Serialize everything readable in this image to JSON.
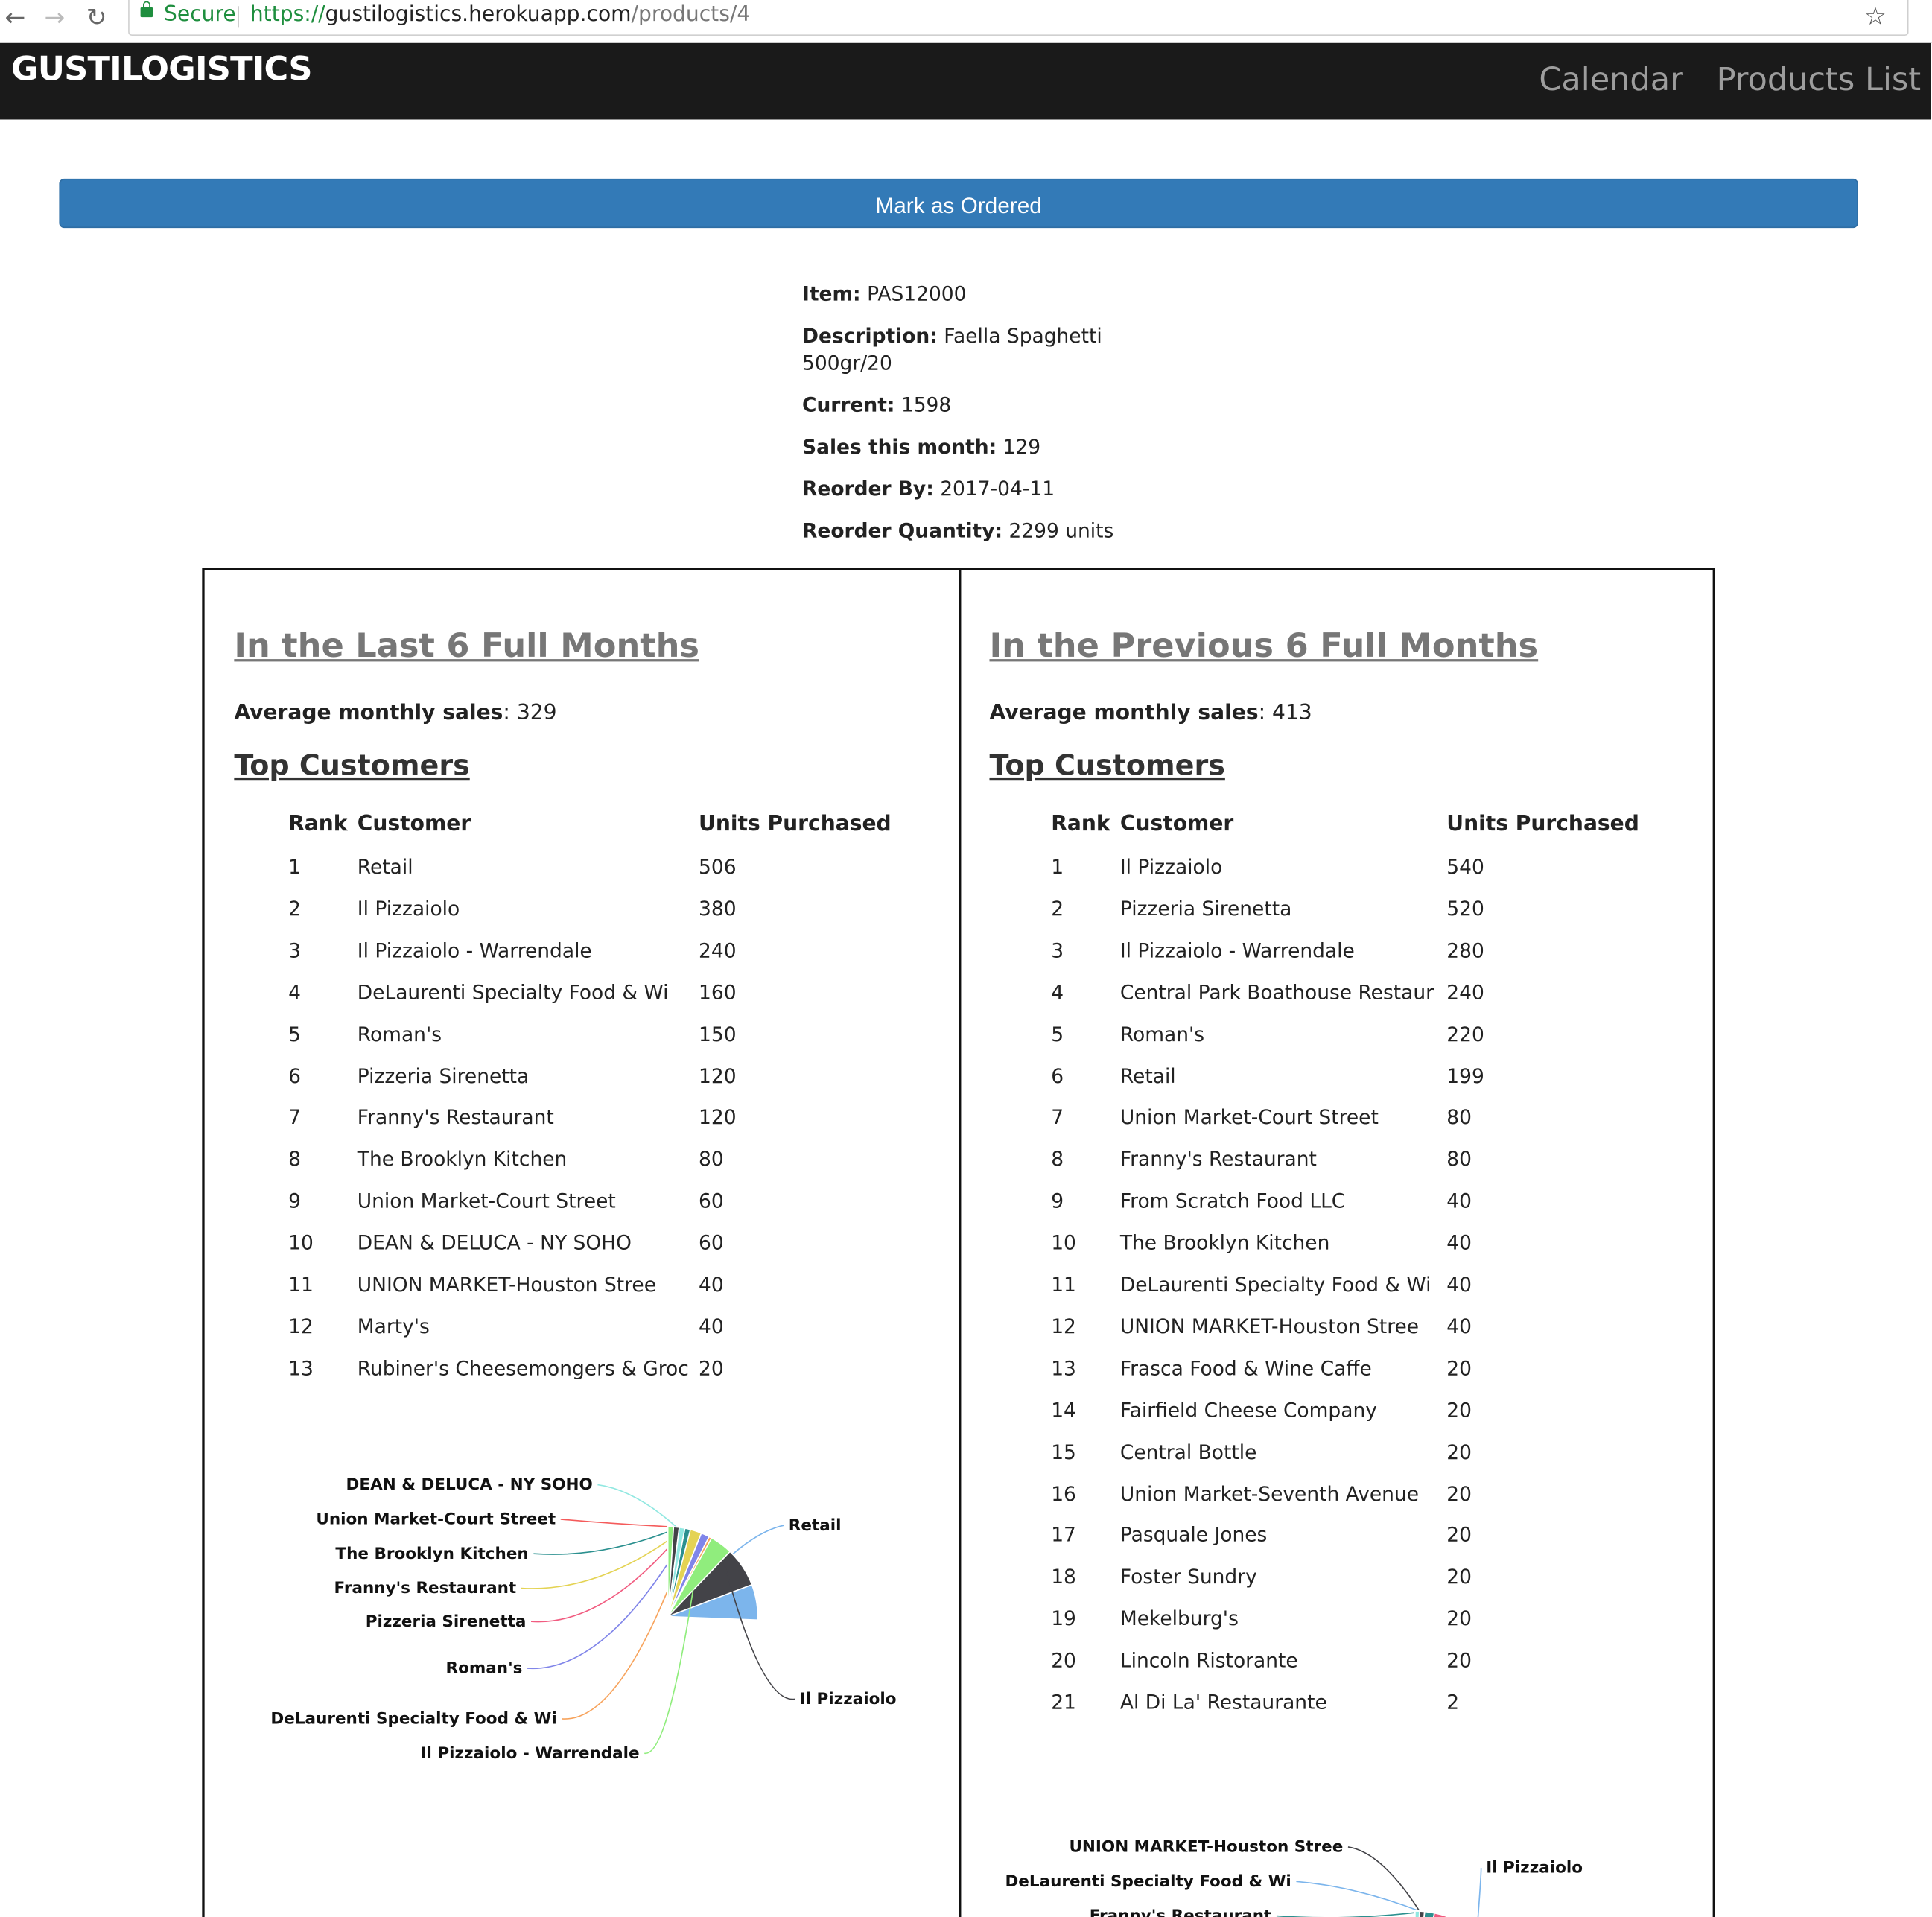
{
  "browser": {
    "secure_label": "Secure",
    "url_scheme": "https://",
    "url_host": "gustilogistics.herokuapp.com",
    "url_path": "/products/4"
  },
  "navbar": {
    "brand": "GUSTILOGISTICS",
    "links": [
      "Calendar",
      "Products List"
    ]
  },
  "order_button": "Mark as Ordered",
  "product": {
    "item_label": "Item:",
    "item": "PAS12000",
    "description_label": "Description:",
    "description": "Faella Spaghetti 500gr/20",
    "current_label": "Current:",
    "current": "1598",
    "sales_label": "Sales this month:",
    "sales": "129",
    "reorder_by_label": "Reorder By:",
    "reorder_by": "2017-04-11",
    "reorder_qty_label": "Reorder Quantity:",
    "reorder_qty": "2299 units"
  },
  "table_headers": {
    "rank": "Rank",
    "customer": "Customer",
    "units": "Units Purchased"
  },
  "panels": [
    {
      "title": "In the Last 6 Full Months",
      "avg_label": "Average monthly sales",
      "avg_value": ": 329",
      "top_title": "Top Customers",
      "rows": [
        [
          "1",
          "Retail",
          "506"
        ],
        [
          "2",
          "Il Pizzaiolo",
          "380"
        ],
        [
          "3",
          "Il Pizzaiolo - Warrendale",
          "240"
        ],
        [
          "4",
          "DeLaurenti Specialty Food & Wi",
          "160"
        ],
        [
          "5",
          "Roman's",
          "150"
        ],
        [
          "6",
          "Pizzeria Sirenetta",
          "120"
        ],
        [
          "7",
          "Franny's Restaurant",
          "120"
        ],
        [
          "8",
          "The Brooklyn Kitchen",
          "80"
        ],
        [
          "9",
          "Union Market-Court Street",
          "60"
        ],
        [
          "10",
          "DEAN & DELUCA - NY SOHO",
          "60"
        ],
        [
          "11",
          "UNION MARKET-Houston Stree",
          "40"
        ],
        [
          "12",
          "Marty's",
          "40"
        ],
        [
          "13",
          "Rubiner's Cheesemongers & Groc",
          "20"
        ]
      ]
    },
    {
      "title": "In the Previous 6 Full Months",
      "avg_label": "Average monthly sales",
      "avg_value": ": 413",
      "top_title": "Top Customers",
      "rows": [
        [
          "1",
          "Il Pizzaiolo",
          "540"
        ],
        [
          "2",
          "Pizzeria Sirenetta",
          "520"
        ],
        [
          "3",
          "Il Pizzaiolo - Warrendale",
          "280"
        ],
        [
          "4",
          "Central Park Boathouse Restaur",
          "240"
        ],
        [
          "5",
          "Roman's",
          "220"
        ],
        [
          "6",
          "Retail",
          "199"
        ],
        [
          "7",
          "Union Market-Court Street",
          "80"
        ],
        [
          "8",
          "Franny's Restaurant",
          "80"
        ],
        [
          "9",
          "From Scratch Food LLC",
          "40"
        ],
        [
          "10",
          "The Brooklyn Kitchen",
          "40"
        ],
        [
          "11",
          "DeLaurenti Specialty Food & Wi",
          "40"
        ],
        [
          "12",
          "UNION MARKET-Houston Stree",
          "40"
        ],
        [
          "13",
          "Frasca Food & Wine Caffe",
          "20"
        ],
        [
          "14",
          "Fairfield Cheese Company",
          "20"
        ],
        [
          "15",
          "Central Bottle",
          "20"
        ],
        [
          "16",
          "Union Market-Seventh Avenue",
          "20"
        ],
        [
          "17",
          "Pasquale Jones",
          "20"
        ],
        [
          "18",
          "Foster Sundry",
          "20"
        ],
        [
          "19",
          "Mekelburg's",
          "20"
        ],
        [
          "20",
          "Lincoln Ristorante",
          "20"
        ],
        [
          "21",
          "Al Di La' Restaurante",
          "2"
        ]
      ]
    }
  ],
  "chart_data": [
    {
      "type": "pie",
      "title": "",
      "categories": [
        "Retail",
        "Il Pizzaiolo",
        "Il Pizzaiolo - Warrendale",
        "DeLaurenti Specialty Food & Wi",
        "Roman's",
        "Pizzeria Sirenetta",
        "Franny's Restaurant",
        "The Brooklyn Kitchen",
        "Union Market-Court Street",
        "DEAN & DELUCA - NY SOHO",
        "UNION MARKET-Houston Stree",
        "Marty's",
        "Rubiner's Cheesemongers & Groc"
      ],
      "values": [
        506,
        380,
        240,
        160,
        150,
        120,
        120,
        80,
        60,
        60,
        40,
        40,
        20
      ],
      "visible_labels": [
        "Retail",
        "Il Pizzaiolo",
        "Il Pizzaiolo - Warrendale",
        "DeLaurenti Specialty Food & Wi",
        "Roman's",
        "Pizzeria Sirenetta",
        "Franny's Restaurant",
        "The Brooklyn Kitchen",
        "Union Market-Court Street",
        "DEAN & DELUCA - NY SOHO"
      ],
      "colors": [
        "#7cb5ec",
        "#434348",
        "#90ed7d",
        "#f7a35c",
        "#8085e9",
        "#f15c80",
        "#e4d354",
        "#2b908f",
        "#f45b5b",
        "#91e8e1",
        "#7cb5ec",
        "#434348",
        "#90ed7d"
      ]
    },
    {
      "type": "pie",
      "title": "",
      "categories": [
        "Il Pizzaiolo",
        "Pizzeria Sirenetta",
        "Il Pizzaiolo - Warrendale",
        "Central Park Boathouse Restaur",
        "Roman's",
        "Retail",
        "Union Market-Court Street",
        "Franny's Restaurant",
        "From Scratch Food LLC",
        "The Brooklyn Kitchen",
        "DeLaurenti Specialty Food & Wi",
        "UNION MARKET-Houston Stree",
        "Frasca Food & Wine Caffe",
        "Fairfield Cheese Company",
        "Central Bottle",
        "Union Market-Seventh Avenue",
        "Pasquale Jones",
        "Foster Sundry",
        "Mekelburg's",
        "Lincoln Ristorante",
        "Al Di La' Restaurante"
      ],
      "values": [
        540,
        520,
        280,
        240,
        220,
        199,
        80,
        80,
        40,
        40,
        40,
        40,
        20,
        20,
        20,
        20,
        20,
        20,
        20,
        20,
        2
      ],
      "visible_labels": [
        "Il Pizzaiolo",
        "UNION MARKET-Houston Stree",
        "DeLaurenti Specialty Food & Wi",
        "Franny's Restaurant"
      ],
      "colors": [
        "#7cb5ec",
        "#434348",
        "#90ed7d",
        "#f7a35c",
        "#8085e9",
        "#f15c80",
        "#e4d354",
        "#2b908f",
        "#f45b5b",
        "#91e8e1",
        "#7cb5ec",
        "#434348",
        "#90ed7d",
        "#f7a35c",
        "#8085e9",
        "#f15c80",
        "#e4d354",
        "#2b908f",
        "#f45b5b",
        "#91e8e1",
        "#7cb5ec"
      ]
    }
  ]
}
